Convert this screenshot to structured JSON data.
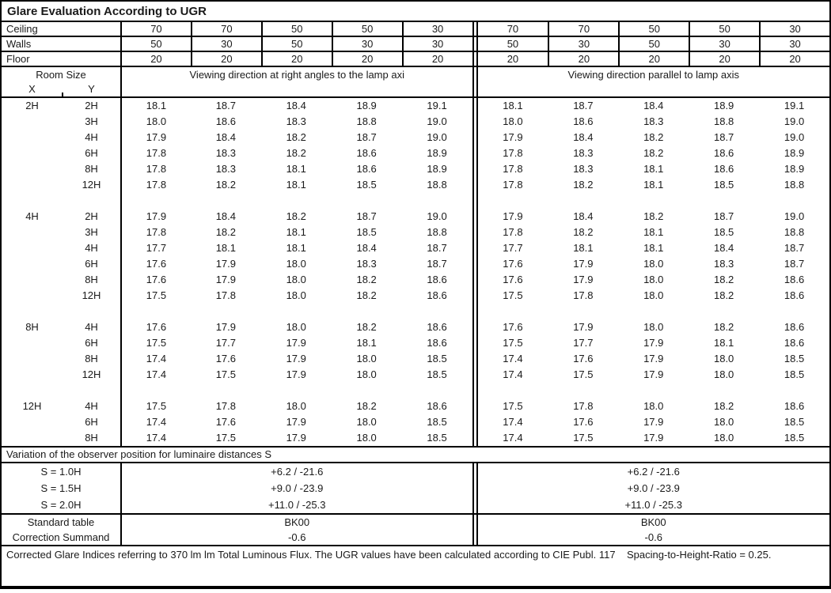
{
  "title": "Glare Evaluation According to UGR",
  "surface_rows": [
    {
      "label": "Ceiling",
      "values": [
        "70",
        "70",
        "50",
        "50",
        "30",
        "70",
        "70",
        "50",
        "50",
        "30"
      ]
    },
    {
      "label": "Walls",
      "values": [
        "50",
        "30",
        "50",
        "30",
        "30",
        "50",
        "30",
        "50",
        "30",
        "30"
      ]
    },
    {
      "label": "Floor",
      "values": [
        "20",
        "20",
        "20",
        "20",
        "20",
        "20",
        "20",
        "20",
        "20",
        "20"
      ]
    }
  ],
  "room_size_header": {
    "title": "Room Size",
    "x_label": "X",
    "y_label": "Y"
  },
  "viewing_headers": {
    "left": "Viewing direction at right angles to the lamp axi",
    "right": "Viewing direction parallel to lamp axis"
  },
  "ugr_blocks": [
    {
      "x": "2H",
      "rows": [
        {
          "y": "2H",
          "left": [
            "18.1",
            "18.7",
            "18.4",
            "18.9",
            "19.1"
          ],
          "right": [
            "18.1",
            "18.7",
            "18.4",
            "18.9",
            "19.1"
          ]
        },
        {
          "y": "3H",
          "left": [
            "18.0",
            "18.6",
            "18.3",
            "18.8",
            "19.0"
          ],
          "right": [
            "18.0",
            "18.6",
            "18.3",
            "18.8",
            "19.0"
          ]
        },
        {
          "y": "4H",
          "left": [
            "17.9",
            "18.4",
            "18.2",
            "18.7",
            "19.0"
          ],
          "right": [
            "17.9",
            "18.4",
            "18.2",
            "18.7",
            "19.0"
          ]
        },
        {
          "y": "6H",
          "left": [
            "17.8",
            "18.3",
            "18.2",
            "18.6",
            "18.9"
          ],
          "right": [
            "17.8",
            "18.3",
            "18.2",
            "18.6",
            "18.9"
          ]
        },
        {
          "y": "8H",
          "left": [
            "17.8",
            "18.3",
            "18.1",
            "18.6",
            "18.9"
          ],
          "right": [
            "17.8",
            "18.3",
            "18.1",
            "18.6",
            "18.9"
          ]
        },
        {
          "y": "12H",
          "left": [
            "17.8",
            "18.2",
            "18.1",
            "18.5",
            "18.8"
          ],
          "right": [
            "17.8",
            "18.2",
            "18.1",
            "18.5",
            "18.8"
          ]
        }
      ]
    },
    {
      "x": "4H",
      "rows": [
        {
          "y": "2H",
          "left": [
            "17.9",
            "18.4",
            "18.2",
            "18.7",
            "19.0"
          ],
          "right": [
            "17.9",
            "18.4",
            "18.2",
            "18.7",
            "19.0"
          ]
        },
        {
          "y": "3H",
          "left": [
            "17.8",
            "18.2",
            "18.1",
            "18.5",
            "18.8"
          ],
          "right": [
            "17.8",
            "18.2",
            "18.1",
            "18.5",
            "18.8"
          ]
        },
        {
          "y": "4H",
          "left": [
            "17.7",
            "18.1",
            "18.1",
            "18.4",
            "18.7"
          ],
          "right": [
            "17.7",
            "18.1",
            "18.1",
            "18.4",
            "18.7"
          ]
        },
        {
          "y": "6H",
          "left": [
            "17.6",
            "17.9",
            "18.0",
            "18.3",
            "18.7"
          ],
          "right": [
            "17.6",
            "17.9",
            "18.0",
            "18.3",
            "18.7"
          ]
        },
        {
          "y": "8H",
          "left": [
            "17.6",
            "17.9",
            "18.0",
            "18.2",
            "18.6"
          ],
          "right": [
            "17.6",
            "17.9",
            "18.0",
            "18.2",
            "18.6"
          ]
        },
        {
          "y": "12H",
          "left": [
            "17.5",
            "17.8",
            "18.0",
            "18.2",
            "18.6"
          ],
          "right": [
            "17.5",
            "17.8",
            "18.0",
            "18.2",
            "18.6"
          ]
        }
      ]
    },
    {
      "x": "8H",
      "rows": [
        {
          "y": "4H",
          "left": [
            "17.6",
            "17.9",
            "18.0",
            "18.2",
            "18.6"
          ],
          "right": [
            "17.6",
            "17.9",
            "18.0",
            "18.2",
            "18.6"
          ]
        },
        {
          "y": "6H",
          "left": [
            "17.5",
            "17.7",
            "17.9",
            "18.1",
            "18.6"
          ],
          "right": [
            "17.5",
            "17.7",
            "17.9",
            "18.1",
            "18.6"
          ]
        },
        {
          "y": "8H",
          "left": [
            "17.4",
            "17.6",
            "17.9",
            "18.0",
            "18.5"
          ],
          "right": [
            "17.4",
            "17.6",
            "17.9",
            "18.0",
            "18.5"
          ]
        },
        {
          "y": "12H",
          "left": [
            "17.4",
            "17.5",
            "17.9",
            "18.0",
            "18.5"
          ],
          "right": [
            "17.4",
            "17.5",
            "17.9",
            "18.0",
            "18.5"
          ]
        }
      ]
    },
    {
      "x": "12H",
      "rows": [
        {
          "y": "4H",
          "left": [
            "17.5",
            "17.8",
            "18.0",
            "18.2",
            "18.6"
          ],
          "right": [
            "17.5",
            "17.8",
            "18.0",
            "18.2",
            "18.6"
          ]
        },
        {
          "y": "6H",
          "left": [
            "17.4",
            "17.6",
            "17.9",
            "18.0",
            "18.5"
          ],
          "right": [
            "17.4",
            "17.6",
            "17.9",
            "18.0",
            "18.5"
          ]
        },
        {
          "y": "8H",
          "left": [
            "17.4",
            "17.5",
            "17.9",
            "18.0",
            "18.5"
          ],
          "right": [
            "17.4",
            "17.5",
            "17.9",
            "18.0",
            "18.5"
          ]
        }
      ]
    }
  ],
  "variation_title": "Variation of the observer position for luminaire distances S",
  "variation_rows": [
    {
      "label": "S = 1.0H",
      "left": "+6.2 / -21.6",
      "right": "+6.2 / -21.6"
    },
    {
      "label": "S = 1.5H",
      "left": "+9.0 / -23.9",
      "right": "+9.0 / -23.9"
    },
    {
      "label": "S = 2.0H",
      "left": "+11.0 / -25.3",
      "right": "+11.0 / -25.3"
    }
  ],
  "summary_rows": [
    {
      "label": "Standard table",
      "left": "BK00",
      "right": "BK00"
    },
    {
      "label": "Correction Summand",
      "left": "-0.6",
      "right": "-0.6"
    }
  ],
  "footer": "Corrected Glare Indices referring to 370 lm lm Total Luminous Flux. The UGR values have been calculated according to CIE Publ. 117    Spacing-to-Height-Ratio = 0.25.",
  "colors": {
    "border": "#000000",
    "text": "#1a1a1a",
    "background": "#ffffff"
  }
}
